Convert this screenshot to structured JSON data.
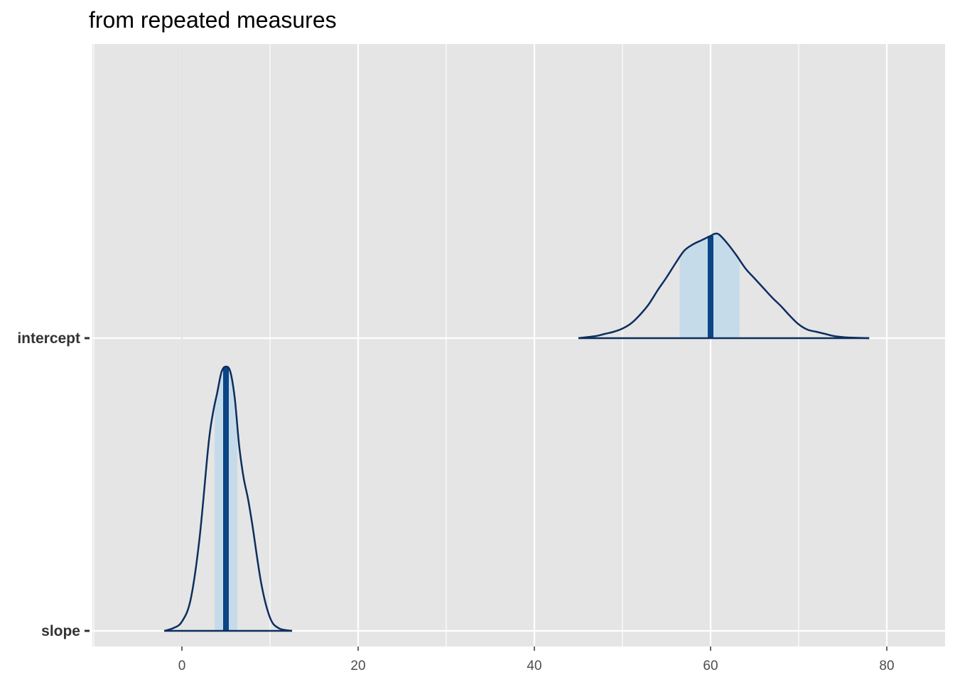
{
  "chart_data": {
    "type": "area",
    "title": "from repeated measures",
    "xlabel": "",
    "ylabel": "",
    "xlim": [
      -10,
      86
    ],
    "x_ticks": [
      0,
      20,
      40,
      60,
      80
    ],
    "x_tick_labels": [
      "0",
      "20",
      "40",
      "60",
      "80"
    ],
    "categories": [
      "slope",
      "intercept"
    ],
    "grid": true,
    "legend": "none",
    "colors": {
      "panel_bg": "#e5e5e5",
      "grid": "#ffffff",
      "line": "#0d2e5e",
      "interval_fill": "#c6dbea",
      "median": "#0b4586"
    },
    "series": [
      {
        "name": "slope",
        "median": 5,
        "interval": [
          3.7,
          6.3
        ],
        "x": [
          -2,
          -1,
          0,
          1,
          2,
          3,
          3.5,
          4,
          4.5,
          5,
          5.5,
          6,
          6.5,
          7,
          7.5,
          8,
          9,
          10,
          11,
          12.5
        ],
        "density": [
          0,
          0.01,
          0.035,
          0.12,
          0.35,
          0.7,
          0.82,
          0.9,
          0.98,
          1.0,
          0.98,
          0.88,
          0.7,
          0.58,
          0.5,
          0.4,
          0.18,
          0.05,
          0.01,
          0
        ]
      },
      {
        "name": "intercept",
        "median": 60,
        "interval": [
          56.5,
          63.3
        ],
        "x": [
          45,
          46,
          47,
          48,
          49,
          50,
          51,
          52,
          53,
          54,
          55,
          56,
          57,
          58,
          59,
          60,
          60.5,
          61,
          62,
          63,
          64,
          65,
          66,
          67,
          68,
          69,
          70,
          71,
          72,
          73,
          74,
          75,
          76,
          78
        ],
        "density": [
          0,
          0.01,
          0.02,
          0.04,
          0.06,
          0.09,
          0.14,
          0.22,
          0.32,
          0.45,
          0.57,
          0.7,
          0.82,
          0.88,
          0.92,
          0.96,
          0.98,
          0.97,
          0.88,
          0.77,
          0.65,
          0.56,
          0.47,
          0.38,
          0.3,
          0.21,
          0.13,
          0.08,
          0.06,
          0.04,
          0.02,
          0.01,
          0.005,
          0
        ]
      }
    ]
  }
}
